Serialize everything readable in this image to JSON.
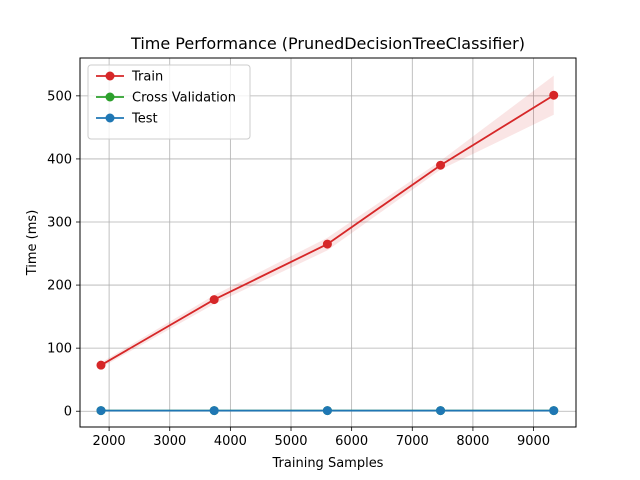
{
  "chart_data": {
    "type": "line",
    "title": "Time Performance (PrunedDecisionTreeClassifier)",
    "xlabel": "Training Samples",
    "ylabel": "Time (ms)",
    "xlim": [
      1520,
      9700
    ],
    "ylim": [
      -25,
      560
    ],
    "xticks": [
      2000,
      3000,
      4000,
      5000,
      6000,
      7000,
      8000,
      9000
    ],
    "yticks": [
      0,
      100,
      200,
      300,
      400,
      500
    ],
    "grid": true,
    "legend_position": "top-left",
    "x": [
      1866,
      3733,
      5600,
      7466,
      9333
    ],
    "series": [
      {
        "name": "Train",
        "color": "#d62728",
        "values": [
          73,
          177,
          265,
          390,
          501
        ],
        "band_lower": [
          69,
          170,
          255,
          383,
          470
        ],
        "band_upper": [
          77,
          184,
          275,
          397,
          532
        ]
      },
      {
        "name": "Cross Validation",
        "color": "#2ca02c",
        "values": [
          1,
          1,
          1,
          1,
          1
        ],
        "band_lower": [
          0,
          0,
          0,
          0,
          0
        ],
        "band_upper": [
          2,
          2,
          2,
          2,
          2
        ]
      },
      {
        "name": "Test",
        "color": "#1f77b4",
        "values": [
          1,
          1,
          1,
          1,
          1
        ],
        "band_lower": [
          0,
          0,
          0,
          0,
          0
        ],
        "band_upper": [
          2,
          2,
          2,
          2,
          2
        ]
      }
    ]
  }
}
